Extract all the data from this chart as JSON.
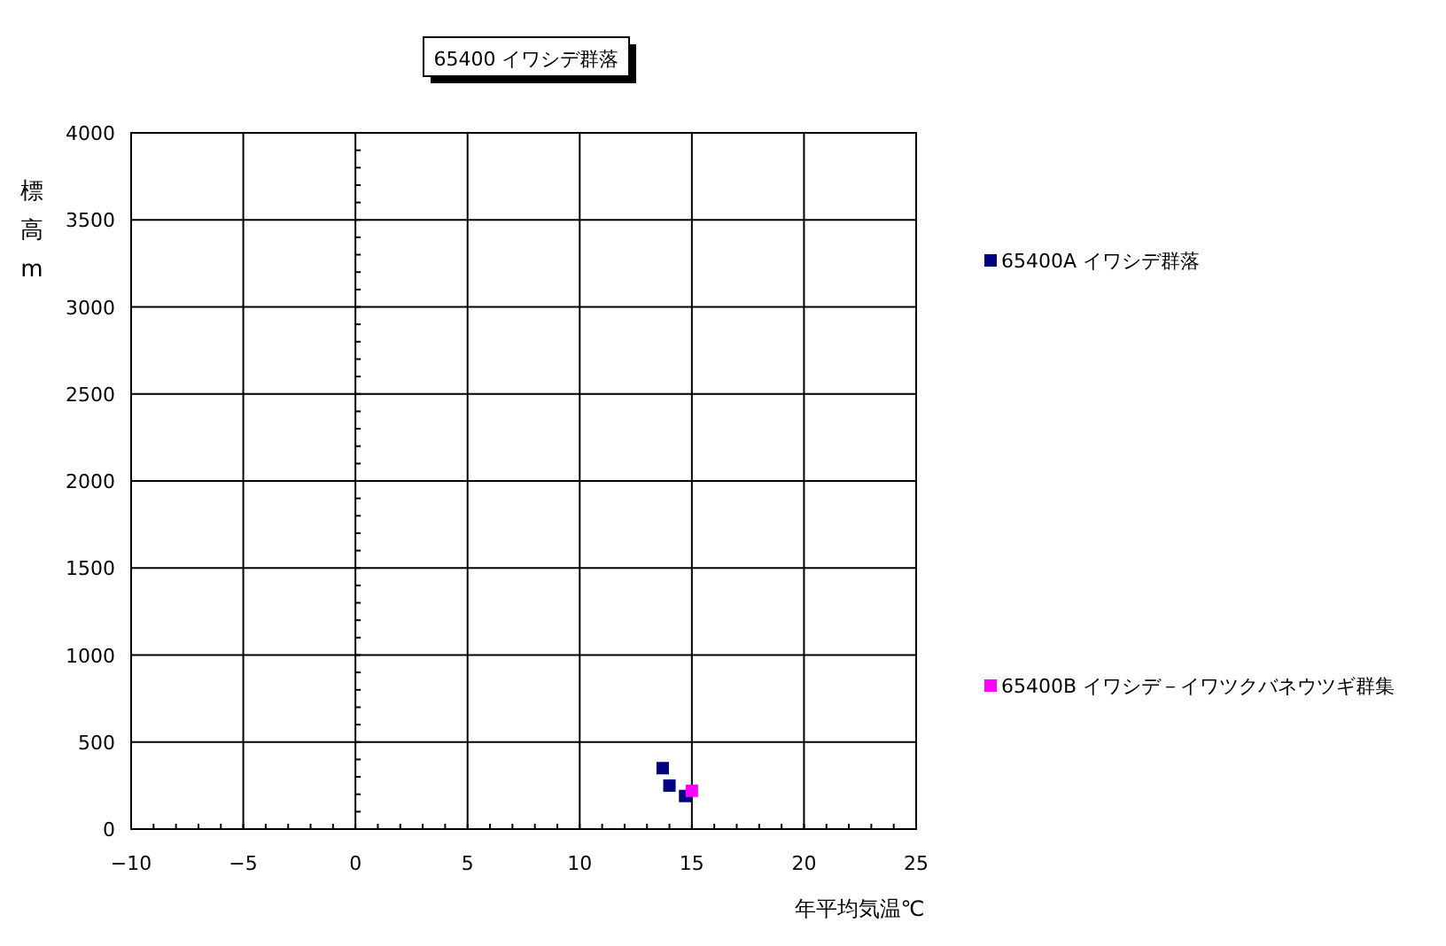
{
  "chart_data": {
    "type": "scatter",
    "title": "65400 イワシデ群落",
    "xlabel": "年平均気温℃",
    "ylabel": "標高m",
    "xlim": [
      -10,
      25
    ],
    "ylim": [
      0,
      4000
    ],
    "xticks": [
      -10,
      -5,
      0,
      5,
      10,
      15,
      20,
      25
    ],
    "yticks": [
      0,
      500,
      1000,
      1500,
      2000,
      2500,
      3000,
      3500,
      4000
    ],
    "grid": true,
    "legend": "right",
    "marker": "square",
    "series": [
      {
        "name": "65400A イワシデ群落",
        "color": "#000080",
        "x": [
          13.7,
          14.0,
          14.7
        ],
        "values": [
          350,
          250,
          190
        ]
      },
      {
        "name": "65400B イワシデ－イワツクバネウツギ群集",
        "color": "#ff00ff",
        "x": [
          15.0
        ],
        "values": [
          220
        ]
      }
    ]
  }
}
